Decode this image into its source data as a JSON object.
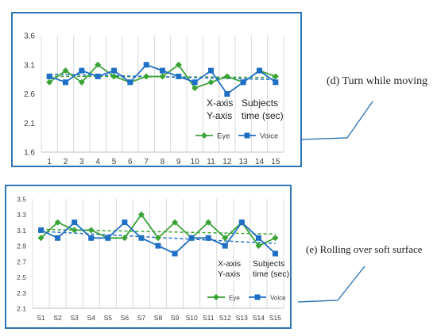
{
  "figures": [
    {
      "caption": "(d) Turn while moving",
      "border_color": "#2e75b6",
      "annotation": [
        {
          "label": "X-axis",
          "value": "Subjects"
        },
        {
          "label": "Y-axis",
          "value": "time (sec)"
        }
      ]
    },
    {
      "caption": "(e) Rolling over soft surface",
      "border_color": "#2e75b6",
      "annotation": [
        {
          "label": "X-axis",
          "value": "Subjects"
        },
        {
          "label": "Y-axis",
          "value": "time (sec)"
        }
      ]
    }
  ],
  "chart_data": [
    {
      "type": "line",
      "categories": [
        "1",
        "2",
        "3",
        "4",
        "5",
        "6",
        "7",
        "8",
        "9",
        "10",
        "11",
        "12",
        "13",
        "14",
        "15"
      ],
      "yticks": [
        "1.6",
        "2.1",
        "2.6",
        "3.1",
        "3.6"
      ],
      "ylim": [
        1.6,
        3.6
      ],
      "grid": "vertical",
      "legend": "bottom-right",
      "trendlines": true,
      "series": [
        {
          "name": "Eye",
          "color": "#3aa335",
          "marker": "diamond",
          "values": [
            2.8,
            3.0,
            2.8,
            3.1,
            2.9,
            2.8,
            2.9,
            2.9,
            3.1,
            2.7,
            2.8,
            2.9,
            2.8,
            3.0,
            2.9
          ]
        },
        {
          "name": "Voice",
          "color": "#1f6fc5",
          "marker": "square",
          "values": [
            2.9,
            2.8,
            3.0,
            2.9,
            3.0,
            2.8,
            3.1,
            3.0,
            2.9,
            2.8,
            3.0,
            2.6,
            2.8,
            3.0,
            2.8
          ]
        }
      ]
    },
    {
      "type": "line",
      "categories": [
        "S1",
        "S2",
        "S3",
        "S4",
        "S5",
        "S6",
        "S7",
        "S8",
        "S9",
        "S10",
        "S11",
        "S12",
        "S13",
        "S14",
        "S15"
      ],
      "yticks": [
        "2.1",
        "2.3",
        "2.5",
        "2.7",
        "2.9",
        "3.1",
        "3.3",
        "3.5"
      ],
      "ylim": [
        2.1,
        3.5
      ],
      "grid": "vertical",
      "legend": "bottom-right",
      "trendlines": true,
      "series": [
        {
          "name": "Eye",
          "color": "#3aa335",
          "marker": "diamond",
          "values": [
            3.0,
            3.2,
            3.1,
            3.1,
            3.0,
            3.0,
            3.3,
            3.0,
            3.2,
            3.0,
            3.2,
            3.0,
            3.2,
            2.9,
            3.0
          ]
        },
        {
          "name": "Voice",
          "color": "#1f6fc5",
          "marker": "square",
          "values": [
            3.1,
            3.0,
            3.2,
            3.0,
            3.0,
            3.2,
            3.0,
            2.9,
            2.8,
            3.0,
            3.0,
            2.9,
            3.2,
            3.0,
            2.8
          ]
        }
      ]
    }
  ]
}
